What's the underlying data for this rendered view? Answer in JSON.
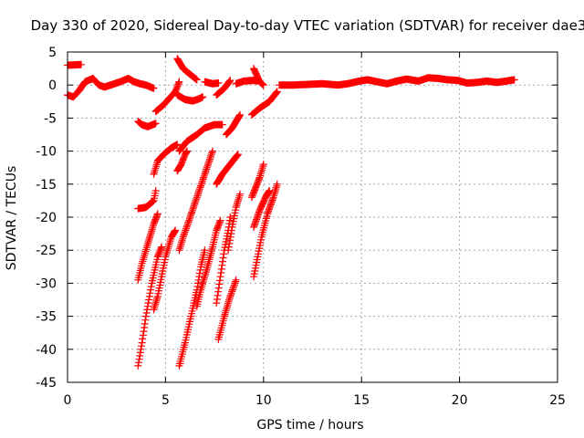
{
  "chart_data": {
    "type": "scatter",
    "title": "Day 330 of 2020, Sidereal Day-to-day VTEC variation (SDTVAR) for receiver dae3",
    "xlabel": "GPS time / hours",
    "ylabel": "SDTVAR / TECUs",
    "xlim": [
      0,
      25
    ],
    "ylim": [
      -45,
      5
    ],
    "xticks": [
      0,
      5,
      10,
      15,
      20,
      25
    ],
    "yticks": [
      5,
      0,
      -5,
      -10,
      -15,
      -20,
      -25,
      -30,
      -35,
      -40,
      -45
    ],
    "grid": true,
    "marker": "+",
    "marker_color": "#ff0000",
    "series": [
      {
        "name": "SDTVAR",
        "segments": [
          [
            [
              0.0,
              3.0
            ],
            [
              0.7,
              3.1
            ]
          ],
          [
            [
              0.0,
              -1.5
            ],
            [
              0.3,
              -1.8
            ],
            [
              0.6,
              -0.8
            ],
            [
              0.9,
              0.5
            ],
            [
              1.3,
              1.0
            ],
            [
              1.6,
              0.0
            ],
            [
              1.9,
              -0.3
            ],
            [
              2.3,
              0.1
            ],
            [
              2.7,
              0.5
            ],
            [
              3.1,
              1.0
            ],
            [
              3.4,
              0.5
            ],
            [
              3.7,
              0.2
            ],
            [
              4.0,
              0.0
            ],
            [
              4.4,
              -0.5
            ]
          ],
          [
            [
              3.6,
              -5.5
            ],
            [
              3.8,
              -6.0
            ],
            [
              4.1,
              -6.3
            ],
            [
              4.5,
              -5.8
            ]
          ],
          [
            [
              4.5,
              -4.0
            ],
            [
              4.9,
              -3.0
            ],
            [
              5.2,
              -2.0
            ],
            [
              5.5,
              -1.0
            ],
            [
              5.7,
              0.5
            ]
          ],
          [
            [
              4.4,
              -13.5
            ],
            [
              4.6,
              -11.5
            ],
            [
              4.9,
              -10.5
            ],
            [
              5.3,
              -9.5
            ],
            [
              5.6,
              -9.0
            ]
          ],
          [
            [
              3.6,
              -18.7
            ],
            [
              4.0,
              -18.5
            ],
            [
              4.4,
              -17.5
            ],
            [
              4.5,
              -16.0
            ]
          ],
          [
            [
              3.6,
              -29.5
            ],
            [
              3.8,
              -27.0
            ],
            [
              4.1,
              -24.0
            ],
            [
              4.4,
              -21.0
            ],
            [
              4.6,
              -19.5
            ]
          ],
          [
            [
              3.6,
              -42.5
            ],
            [
              3.8,
              -39.0
            ],
            [
              4.0,
              -35.0
            ],
            [
              4.3,
              -30.0
            ],
            [
              4.6,
              -26.0
            ],
            [
              4.8,
              -24.5
            ]
          ],
          [
            [
              4.4,
              -34.0
            ],
            [
              4.6,
              -32.0
            ],
            [
              4.8,
              -29.0
            ],
            [
              5.0,
              -26.0
            ],
            [
              5.3,
              -23.0
            ],
            [
              5.5,
              -22.0
            ]
          ],
          [
            [
              5.6,
              4.0
            ],
            [
              5.9,
              2.5
            ],
            [
              6.3,
              1.5
            ],
            [
              6.6,
              0.8
            ]
          ],
          [
            [
              5.6,
              -1.5
            ],
            [
              6.0,
              -2.2
            ],
            [
              6.4,
              -2.4
            ],
            [
              6.7,
              -2.1
            ],
            [
              6.9,
              -1.8
            ]
          ],
          [
            [
              5.7,
              -10.0
            ],
            [
              6.1,
              -8.5
            ],
            [
              6.6,
              -7.5
            ],
            [
              7.0,
              -6.5
            ],
            [
              7.5,
              -6.0
            ],
            [
              7.9,
              -6.0
            ]
          ],
          [
            [
              5.6,
              -13.0
            ],
            [
              5.8,
              -12.0
            ],
            [
              6.0,
              -10.5
            ],
            [
              6.1,
              -10.0
            ]
          ],
          [
            [
              5.7,
              -25.0
            ],
            [
              5.9,
              -23.0
            ],
            [
              6.2,
              -20.5
            ],
            [
              6.6,
              -17.0
            ],
            [
              7.0,
              -13.5
            ],
            [
              7.4,
              -10.0
            ]
          ],
          [
            [
              5.7,
              -42.5
            ],
            [
              6.0,
              -39.0
            ],
            [
              6.3,
              -35.0
            ],
            [
              6.6,
              -31.0
            ],
            [
              6.8,
              -27.5
            ],
            [
              7.0,
              -25.0
            ]
          ],
          [
            [
              6.6,
              -33.5
            ],
            [
              6.8,
              -31.0
            ],
            [
              7.1,
              -28.0
            ],
            [
              7.4,
              -24.5
            ],
            [
              7.6,
              -22.0
            ],
            [
              7.8,
              -20.5
            ]
          ],
          [
            [
              7.0,
              0.5
            ],
            [
              7.4,
              0.2
            ],
            [
              7.7,
              0.3
            ]
          ],
          [
            [
              7.6,
              -1.5
            ],
            [
              8.0,
              -0.5
            ],
            [
              8.3,
              0.7
            ]
          ],
          [
            [
              7.6,
              -15.0
            ],
            [
              7.9,
              -13.5
            ],
            [
              8.3,
              -12.0
            ],
            [
              8.7,
              -10.5
            ]
          ],
          [
            [
              7.6,
              -33.0
            ],
            [
              7.8,
              -29.0
            ],
            [
              8.0,
              -25.0
            ],
            [
              8.2,
              -22.0
            ],
            [
              8.3,
              -20.0
            ]
          ],
          [
            [
              7.7,
              -38.5
            ],
            [
              8.0,
              -35.0
            ],
            [
              8.3,
              -32.0
            ],
            [
              8.6,
              -29.5
            ]
          ],
          [
            [
              8.2,
              -25.0
            ],
            [
              8.4,
              -21.5
            ],
            [
              8.6,
              -18.5
            ],
            [
              8.8,
              -16.5
            ]
          ],
          [
            [
              8.1,
              -7.5
            ],
            [
              8.4,
              -6.5
            ],
            [
              8.6,
              -5.5
            ],
            [
              8.8,
              -4.5
            ]
          ],
          [
            [
              8.6,
              0.2
            ],
            [
              9.0,
              0.6
            ],
            [
              9.5,
              0.7
            ],
            [
              9.7,
              0.6
            ]
          ],
          [
            [
              9.5,
              2.5
            ],
            [
              9.8,
              0.5
            ],
            [
              10.0,
              0.0
            ]
          ],
          [
            [
              9.4,
              -4.5
            ],
            [
              9.8,
              -3.5
            ],
            [
              10.3,
              -2.5
            ],
            [
              10.7,
              -1.0
            ]
          ],
          [
            [
              9.4,
              -17.0
            ],
            [
              9.6,
              -15.5
            ],
            [
              9.8,
              -14.0
            ],
            [
              10.0,
              -12.0
            ]
          ],
          [
            [
              9.5,
              -21.5
            ],
            [
              9.8,
              -19.0
            ],
            [
              10.1,
              -17.0
            ],
            [
              10.3,
              -16.0
            ]
          ],
          [
            [
              9.5,
              -29.0
            ],
            [
              9.7,
              -26.0
            ],
            [
              9.9,
              -23.0
            ],
            [
              10.2,
              -19.5
            ],
            [
              10.5,
              -17.0
            ],
            [
              10.7,
              -15.0
            ]
          ],
          [
            [
              10.8,
              0.0
            ],
            [
              11.5,
              0.0
            ],
            [
              12.3,
              0.1
            ],
            [
              13.0,
              0.2
            ],
            [
              13.8,
              0.0
            ],
            [
              14.3,
              0.2
            ],
            [
              14.9,
              0.6
            ],
            [
              15.3,
              0.8
            ],
            [
              15.8,
              0.5
            ],
            [
              16.3,
              0.2
            ],
            [
              16.8,
              0.6
            ],
            [
              17.3,
              0.9
            ],
            [
              17.9,
              0.6
            ],
            [
              18.4,
              1.1
            ],
            [
              18.9,
              1.0
            ],
            [
              19.4,
              0.8
            ],
            [
              19.9,
              0.7
            ],
            [
              20.4,
              0.3
            ],
            [
              20.9,
              0.4
            ],
            [
              21.4,
              0.6
            ],
            [
              21.9,
              0.4
            ],
            [
              22.4,
              0.6
            ],
            [
              22.8,
              0.8
            ]
          ]
        ]
      }
    ]
  }
}
